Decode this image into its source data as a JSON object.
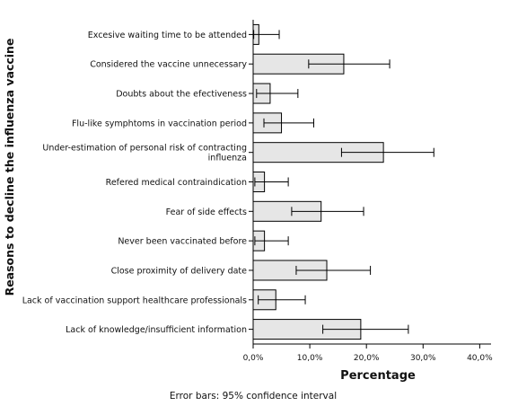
{
  "chart_data": {
    "type": "bar",
    "orientation": "horizontal",
    "categories": [
      [
        "Excesive waiting time to be attended"
      ],
      [
        "Considered the vaccine unnecessary"
      ],
      [
        "Doubts about the efectiveness"
      ],
      [
        "Flu-like symphtoms in vaccination period"
      ],
      [
        "Under-estimation of personal risk of contracting",
        "influenza"
      ],
      [
        "Refered medical contraindication"
      ],
      [
        "Fear of side effects"
      ],
      [
        "Never been vaccinated before"
      ],
      [
        "Close proximity of delivery date"
      ],
      [
        "Lack of vaccination support healthcare professionals"
      ],
      [
        "Lack of knowledge/insufficient information"
      ]
    ],
    "values": [
      1.0,
      16.0,
      3.0,
      5.0,
      23.0,
      2.0,
      12.0,
      2.0,
      13.0,
      4.0,
      19.0
    ],
    "ci_lower": [
      0.1,
      9.8,
      0.6,
      1.9,
      15.6,
      0.3,
      6.8,
      0.3,
      7.6,
      0.9,
      12.3
    ],
    "ci_upper": [
      4.6,
      24.1,
      7.9,
      10.7,
      31.9,
      6.2,
      19.5,
      6.2,
      20.7,
      9.2,
      27.4
    ],
    "xlabel": "Percentage",
    "ylabel": "Reasons to decline the influenza vaccine",
    "xlim": [
      0,
      42
    ],
    "xticks": [
      0,
      10,
      20,
      30,
      40
    ],
    "xtick_labels": [
      "0,0%",
      "10,0%",
      "20,0%",
      "30,0%",
      "40,0%"
    ],
    "note": "Error bars: 95% confidence interval",
    "grid": false,
    "bar_fill": "#e6e6e6",
    "bar_stroke": "#000000"
  }
}
